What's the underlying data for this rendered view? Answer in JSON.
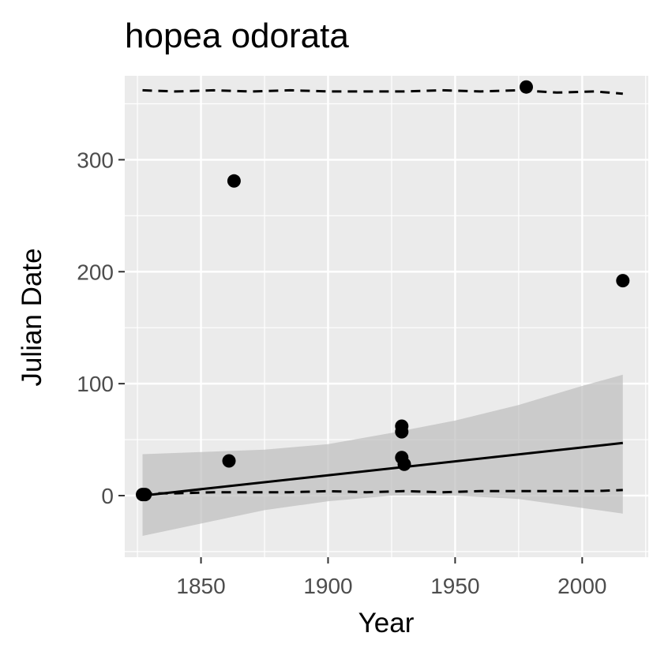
{
  "chart_data": {
    "type": "scatter",
    "title": "hopea odorata",
    "xlabel": "Year",
    "ylabel": "Julian Date",
    "xlim": [
      1820,
      2026
    ],
    "ylim": [
      -55,
      375
    ],
    "x_ticks": [
      1850,
      1900,
      1950,
      2000
    ],
    "y_ticks": [
      0,
      100,
      200,
      300
    ],
    "grid": true,
    "colors": {
      "panel_background": "#ebebeb",
      "grid": "#ffffff",
      "points": "#000000",
      "ribbon": "#bebebe",
      "tick_label": "#4d4d4d"
    },
    "points": [
      {
        "x": 1827,
        "y": 1
      },
      {
        "x": 1828,
        "y": 1
      },
      {
        "x": 1861,
        "y": 31
      },
      {
        "x": 1863,
        "y": 281
      },
      {
        "x": 1929,
        "y": 62
      },
      {
        "x": 1929,
        "y": 57
      },
      {
        "x": 1929,
        "y": 34
      },
      {
        "x": 1930,
        "y": 28
      },
      {
        "x": 1978,
        "y": 365
      },
      {
        "x": 2016,
        "y": 192
      }
    ],
    "trend_line": {
      "x": [
        1827,
        2016
      ],
      "y": [
        0,
        47
      ]
    },
    "confidence_band": {
      "x": [
        1827,
        1850,
        1875,
        1900,
        1925,
        1950,
        1975,
        2000,
        2016
      ],
      "lower": [
        -36,
        -25,
        -13,
        -5,
        0,
        0,
        -3,
        -11,
        -16
      ],
      "upper": [
        37,
        39,
        41,
        46,
        56,
        67,
        81,
        98,
        108
      ]
    },
    "dashed_upper": {
      "x": [
        1827,
        1840,
        1855,
        1870,
        1885,
        1900,
        1915,
        1930,
        1945,
        1960,
        1975,
        1990,
        2005,
        2016
      ],
      "y": [
        362,
        361,
        362,
        361,
        362,
        361,
        361,
        361,
        362,
        361,
        362,
        360,
        361,
        359
      ]
    },
    "dashed_lower": {
      "x": [
        1827,
        1840,
        1855,
        1870,
        1885,
        1900,
        1915,
        1930,
        1945,
        1960,
        1975,
        1990,
        2005,
        2016
      ],
      "y": [
        2,
        2,
        3,
        3,
        3,
        4,
        3,
        4,
        3,
        4,
        4,
        4,
        4,
        5
      ]
    }
  }
}
